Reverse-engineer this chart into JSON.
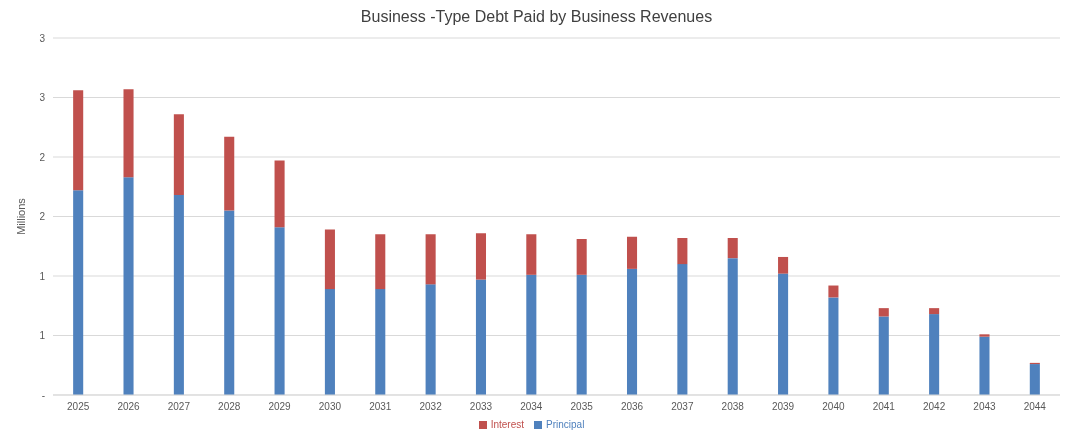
{
  "chart_data": {
    "type": "bar",
    "title": "Business -Type Debt Paid by Business Revenues",
    "ylabel": "Millions",
    "categories": [
      "2025",
      "2026",
      "2027",
      "2028",
      "2029",
      "2030",
      "2031",
      "2032",
      "2033",
      "2034",
      "2035",
      "2036",
      "2037",
      "2038",
      "2039",
      "2040",
      "2041",
      "2042",
      "2043",
      "2044"
    ],
    "series": [
      {
        "name": "Principal",
        "color": "#4f81bd",
        "values": [
          1.72,
          1.83,
          1.68,
          1.55,
          1.41,
          0.89,
          0.89,
          0.93,
          0.97,
          1.01,
          1.01,
          1.06,
          1.1,
          1.15,
          1.02,
          0.82,
          0.66,
          0.68,
          0.49,
          0.26
        ]
      },
      {
        "name": "Interest",
        "color": "#c0504d",
        "values": [
          0.84,
          0.74,
          0.68,
          0.62,
          0.56,
          0.5,
          0.46,
          0.42,
          0.39,
          0.34,
          0.3,
          0.27,
          0.22,
          0.17,
          0.14,
          0.1,
          0.07,
          0.05,
          0.02,
          0.01
        ]
      }
    ],
    "stacked": true,
    "ylim": [
      0,
      3
    ],
    "yticks": [
      {
        "value": 0,
        "label": "-"
      },
      {
        "value": 0.5,
        "label": "1"
      },
      {
        "value": 1,
        "label": "1"
      },
      {
        "value": 1.5,
        "label": "2"
      },
      {
        "value": 2,
        "label": "2"
      },
      {
        "value": 2.5,
        "label": "3"
      },
      {
        "value": 3,
        "label": "3"
      }
    ],
    "grid": "y",
    "legend": "bottom"
  }
}
